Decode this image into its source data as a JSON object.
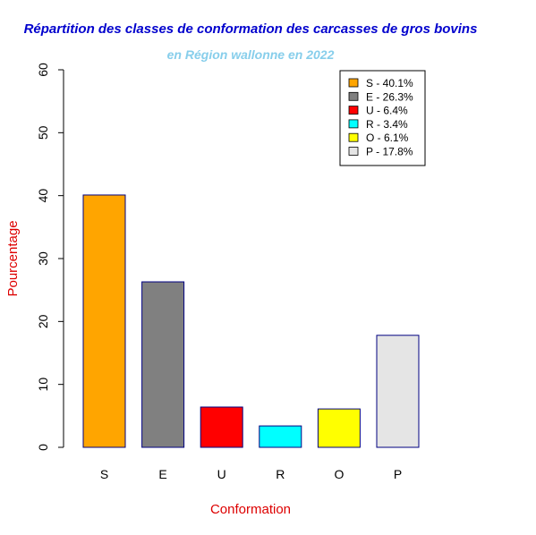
{
  "chart_data": {
    "type": "bar",
    "title": "Répartition des classes de conformation des carcasses de gros bovins",
    "subtitle": "en Région wallonne en 2022",
    "xlabel": "Conformation",
    "ylabel": "Pourcentage",
    "categories": [
      "S",
      "E",
      "U",
      "R",
      "O",
      "P"
    ],
    "values": [
      40.1,
      26.3,
      6.4,
      3.4,
      6.1,
      17.8
    ],
    "colors": [
      "#FFA500",
      "#808080",
      "#FF0000",
      "#00FFFF",
      "#FFFF00",
      "#E5E5E5"
    ],
    "bar_border_color": "#000080",
    "ylim": [
      0,
      60
    ],
    "yticks": [
      0,
      10,
      20,
      30,
      40,
      50,
      60
    ],
    "grid": false,
    "legend": {
      "position": "top-right",
      "entries": [
        "S - 40.1%",
        "E - 26.3%",
        "U - 6.4%",
        "R - 3.4%",
        "O - 6.1%",
        "P - 17.8%"
      ]
    },
    "title_color": "#0000CD",
    "subtitle_color": "#87CEEB",
    "label_color": "#DD0000"
  }
}
